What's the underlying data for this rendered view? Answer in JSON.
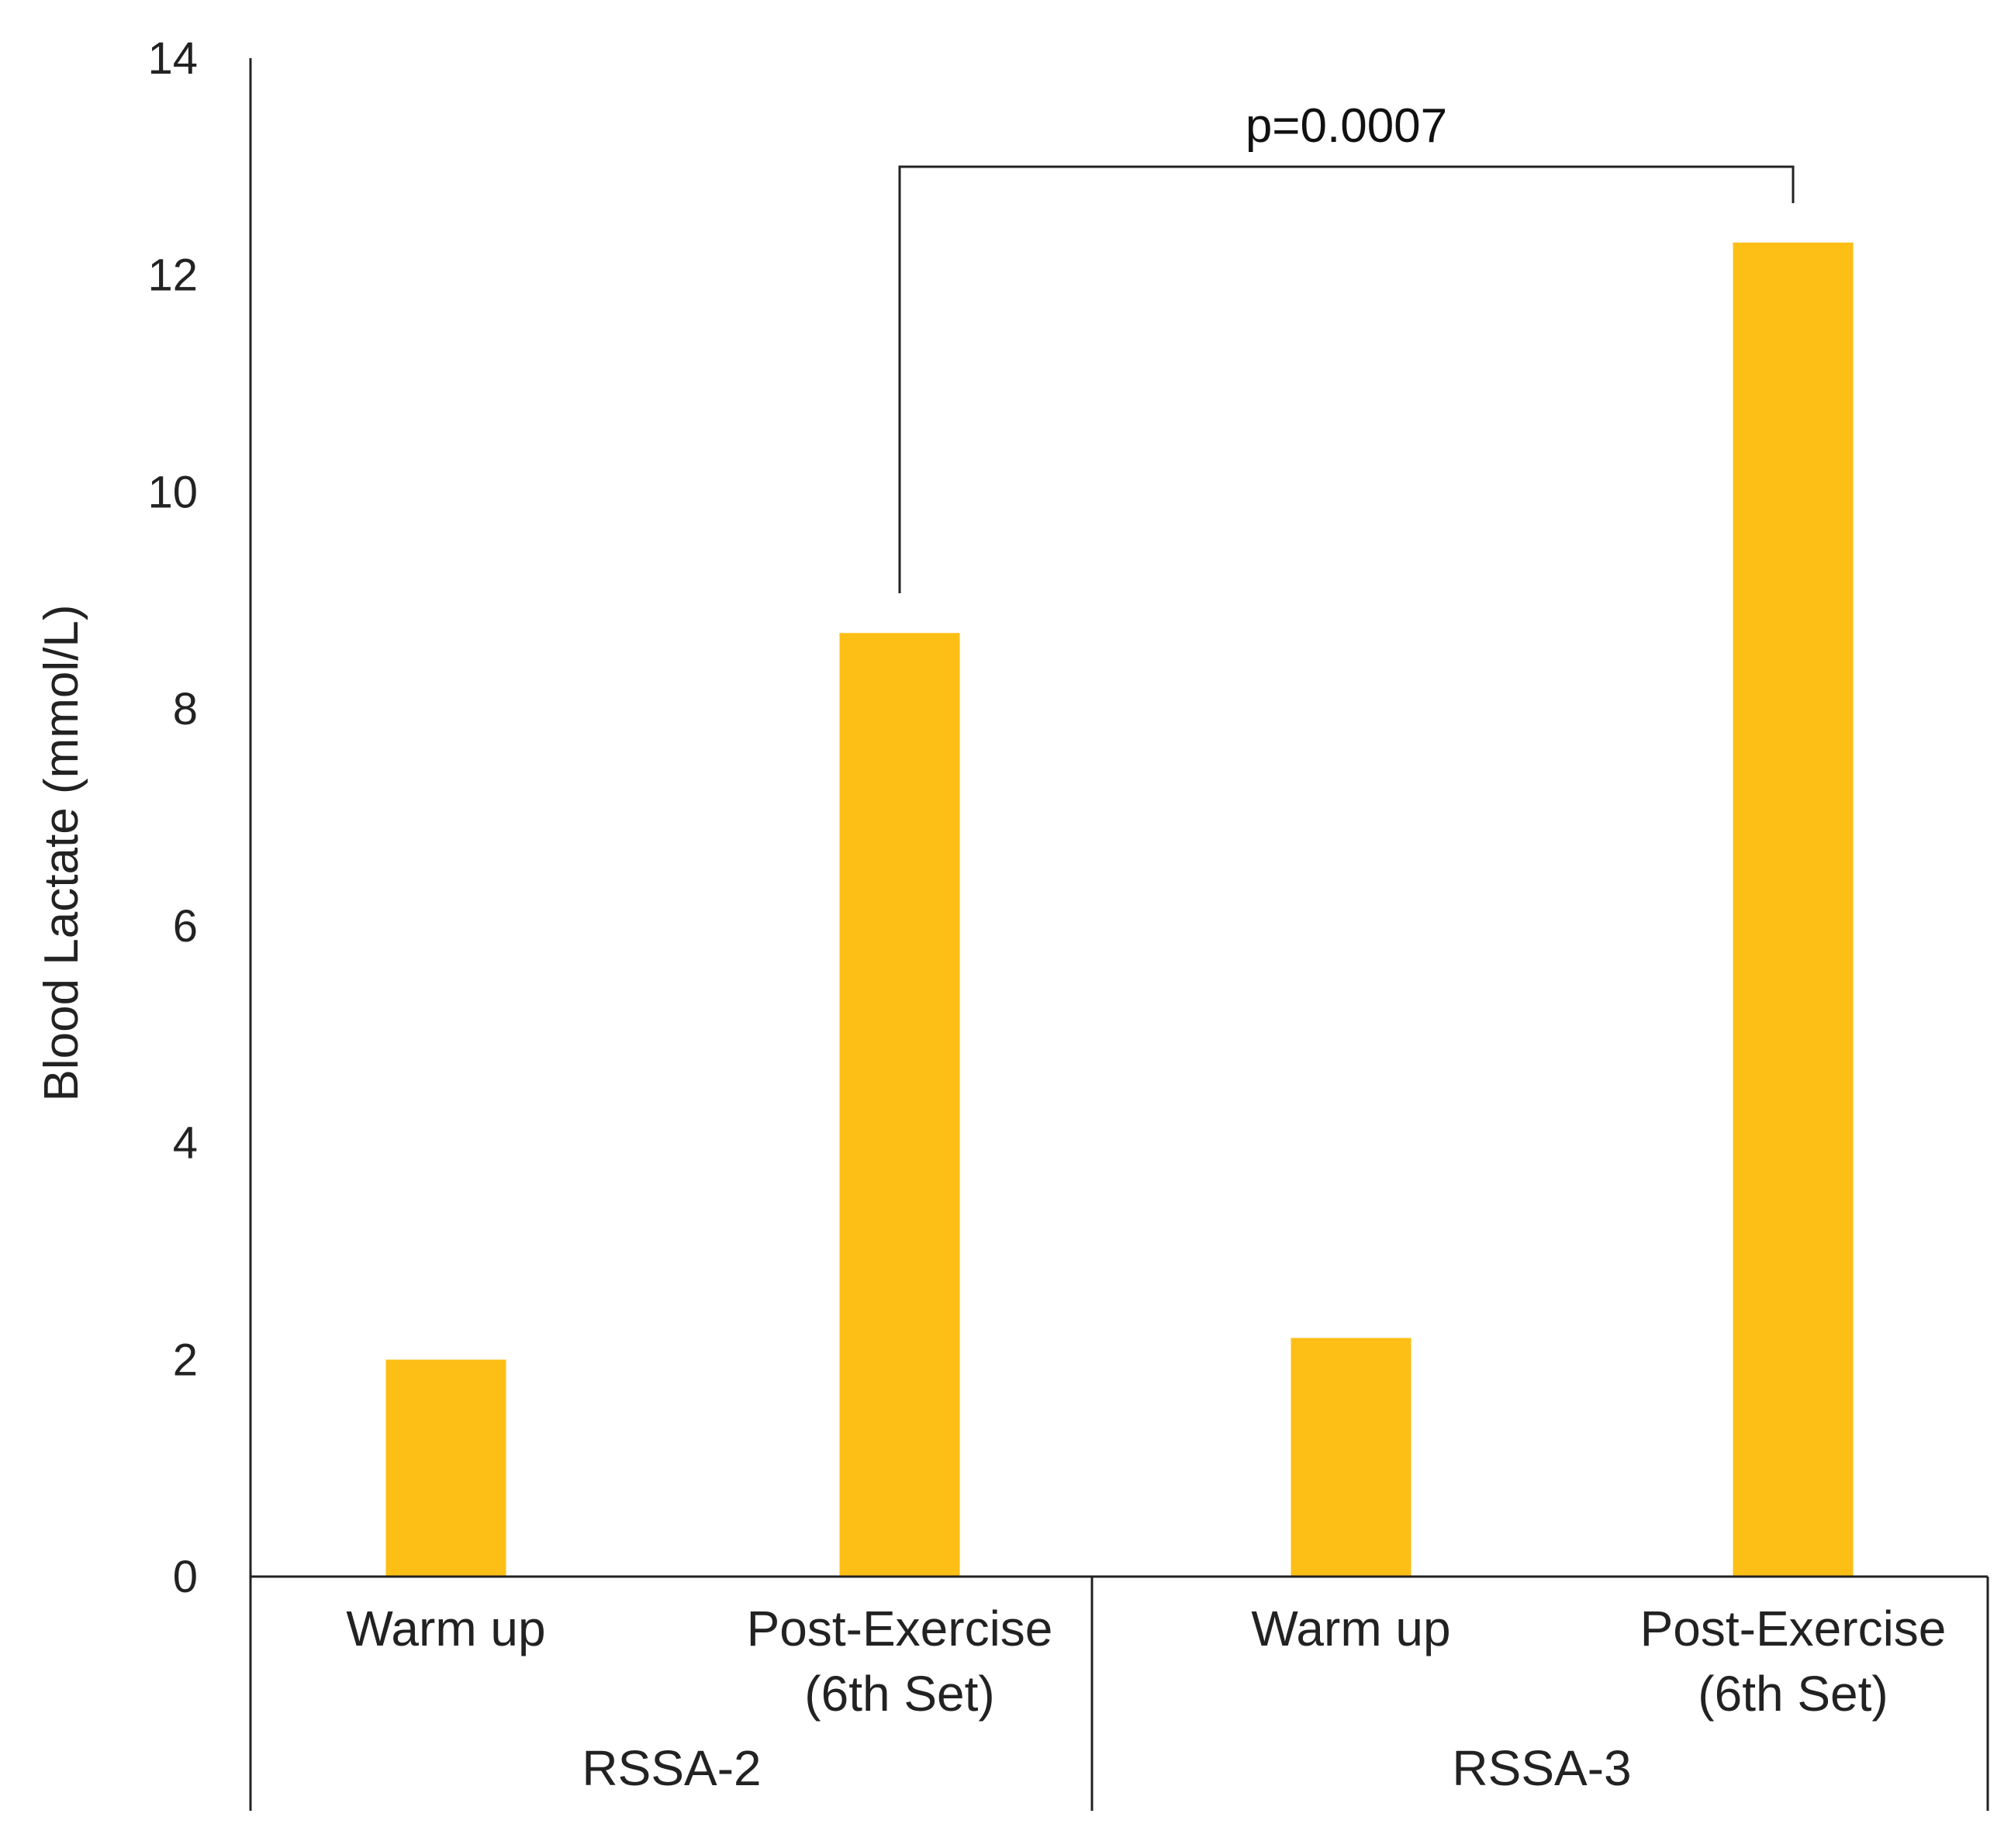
{
  "chart_data": {
    "type": "bar",
    "title": "",
    "xlabel": "",
    "ylabel": "Blood Lactate (mmol/L)",
    "ylim": [
      0,
      14
    ],
    "yticks": [
      0,
      2,
      4,
      6,
      8,
      10,
      12,
      14
    ],
    "grid": false,
    "bar_color": "#FDBE16",
    "groups": [
      {
        "name": "RSSA-2",
        "categories": [
          {
            "lines": [
              "Warm up"
            ],
            "value": 2.0
          },
          {
            "lines": [
              "Post-Exercise",
              "(6th Set)"
            ],
            "value": 8.7
          }
        ]
      },
      {
        "name": "RSSA-3",
        "categories": [
          {
            "lines": [
              "Warm up"
            ],
            "value": 2.2
          },
          {
            "lines": [
              "Post-Exercise",
              "(6th Set)"
            ],
            "value": 12.3
          }
        ]
      }
    ],
    "annotations": [
      {
        "text": "p=0.0007",
        "from": [
          0,
          1
        ],
        "to": [
          1,
          1
        ]
      }
    ]
  }
}
